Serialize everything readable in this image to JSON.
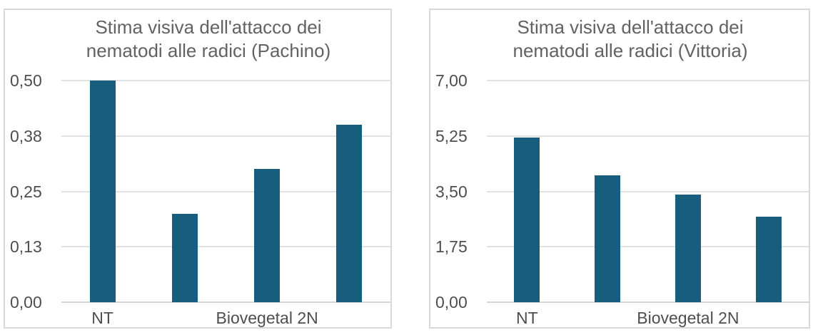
{
  "styles": {
    "bar_color": "#175E7E",
    "gridline_color": "#E2E2E2",
    "baseline_color": "#D6D6D6",
    "panel_border_color": "#D9D9D9",
    "title_color": "#626262",
    "axis_label_color": "#4E4E4E",
    "background_color": "#FFFFFF"
  },
  "chart_data": [
    {
      "type": "bar",
      "title": "Stima visiva dell'attacco dei nematodi alle radici (Pachino)",
      "title_lines": [
        "Stima visiva dell'attacco dei",
        "nematodi alle radici (Pachino)"
      ],
      "categories": [
        "NT",
        "",
        "Biovegetal 2N",
        ""
      ],
      "values": [
        0.5,
        0.2,
        0.3,
        0.4
      ],
      "ylim": [
        0,
        0.5
      ],
      "yticks": [
        {
          "value": 0,
          "label": "0,00"
        },
        {
          "value": 0.125,
          "label": "0,13"
        },
        {
          "value": 0.25,
          "label": "0,25"
        },
        {
          "value": 0.375,
          "label": "0,38"
        },
        {
          "value": 0.5,
          "label": "0,50"
        }
      ],
      "x_tick_labels": [
        {
          "slot": 0,
          "label": "NT"
        },
        {
          "slot": 2,
          "label": "Biovegetal 2N"
        }
      ],
      "xlabel": "",
      "ylabel": "",
      "grid": true,
      "legend": "none"
    },
    {
      "type": "bar",
      "title": "Stima visiva dell'attacco dei nematodi alle radici (Vittoria)",
      "title_lines": [
        "Stima visiva dell'attacco dei",
        "nematodi alle radici (Vittoria)"
      ],
      "categories": [
        "NT",
        "",
        "Biovegetal 2N",
        ""
      ],
      "values": [
        5.2,
        4.0,
        3.4,
        2.7
      ],
      "ylim": [
        0,
        7
      ],
      "yticks": [
        {
          "value": 0,
          "label": "0,00"
        },
        {
          "value": 1.75,
          "label": "1,75"
        },
        {
          "value": 3.5,
          "label": "3,50"
        },
        {
          "value": 5.25,
          "label": "5,25"
        },
        {
          "value": 7,
          "label": "7,00"
        }
      ],
      "x_tick_labels": [
        {
          "slot": 0,
          "label": "NT"
        },
        {
          "slot": 2,
          "label": "Biovegetal 2N"
        }
      ],
      "xlabel": "",
      "ylabel": "",
      "grid": true,
      "legend": "none"
    }
  ]
}
